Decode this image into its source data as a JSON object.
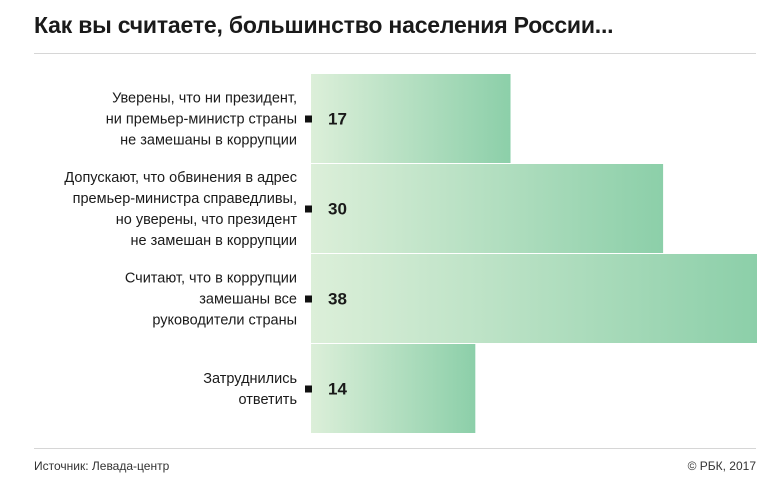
{
  "title": "Как вы считаете, большинство населения России...",
  "source": "Источник: Левада-центр",
  "copyright": "© РБК, 2017",
  "colors": {
    "bar_start": "#dcefd9",
    "bar_end": "#8ccfa9",
    "text": "#1a1a1a",
    "marker": "#111111"
  },
  "chart_data": {
    "type": "bar",
    "orientation": "horizontal",
    "categories": [
      [
        "Уверены, что ни президент,",
        "ни премьер-министр страны",
        "не замешаны в коррупции"
      ],
      [
        "Допускают, что обвинения в адрес",
        "премьер-министра справедливы,",
        "но уверены, что президент",
        "не замешан в коррупции"
      ],
      [
        "Считают, что в коррупции",
        "замешаны все",
        "руководители страны"
      ],
      [
        "Затруднились",
        "ответить"
      ]
    ],
    "values": [
      17,
      30,
      38,
      14
    ],
    "xlim": [
      0,
      38
    ],
    "grid": false,
    "legend": "none"
  }
}
